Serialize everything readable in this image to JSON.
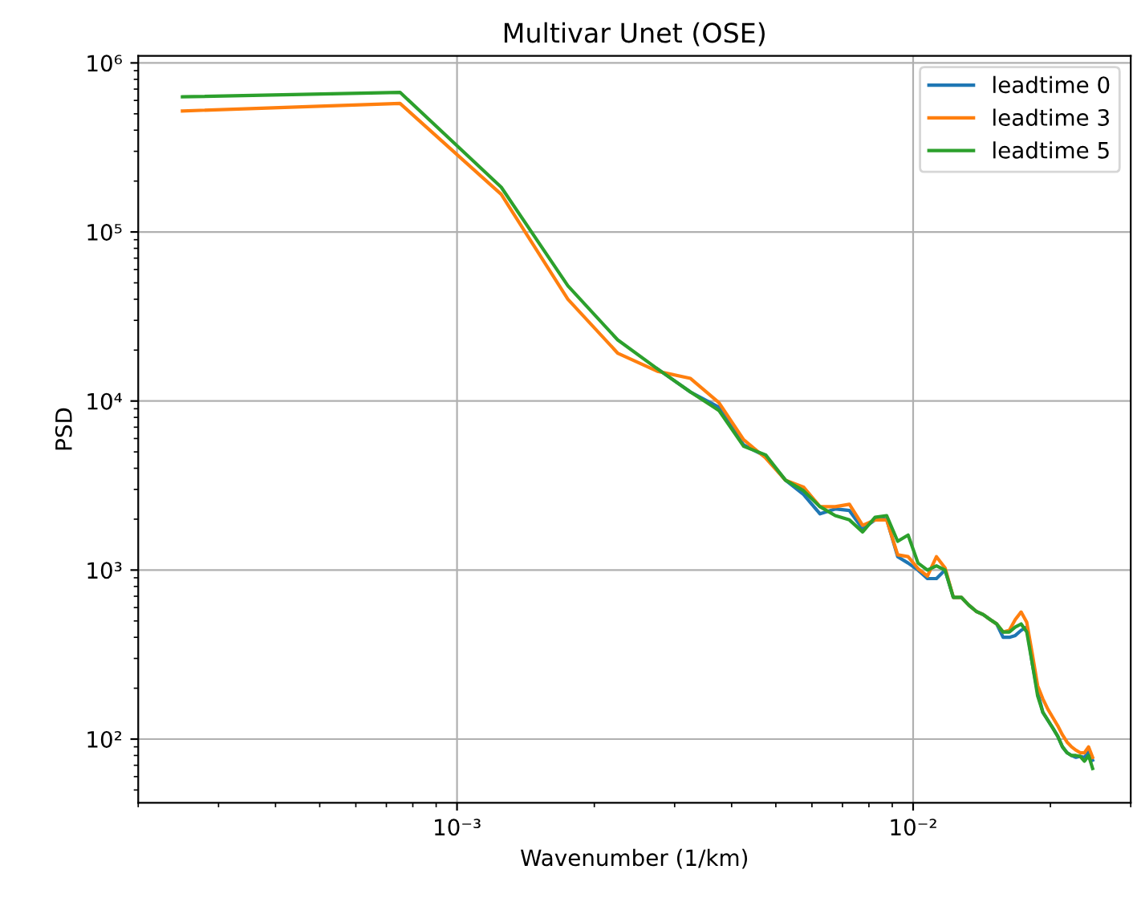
{
  "chart_data": {
    "type": "line",
    "title": "Multivar Unet (OSE)",
    "xlabel": "Wavenumber (1/km)",
    "ylabel": "PSD",
    "log": "xy",
    "grid": true,
    "legend": "top right",
    "x": [
      0.00025,
      0.00075,
      0.00125,
      0.00175,
      0.00225,
      0.00275,
      0.00325,
      0.00375,
      0.00425,
      0.00475,
      0.00525,
      0.00575,
      0.00625,
      0.00675,
      0.00725,
      0.00775,
      0.00825,
      0.00875,
      0.00925,
      0.00975,
      0.01025,
      0.01075,
      0.01125,
      0.01175,
      0.01225,
      0.01275,
      0.01325,
      0.01375,
      0.01425,
      0.01475,
      0.01525,
      0.01575,
      0.01625,
      0.01675,
      0.01725,
      0.01775,
      0.01825,
      0.01875,
      0.01925,
      0.01975,
      0.02025,
      0.02075,
      0.02125,
      0.02175,
      0.02225,
      0.02275,
      0.02325,
      0.02375,
      0.02425,
      0.02475
    ],
    "xlim": [
      0.0002,
      0.03
    ],
    "ylim": [
      42,
      1100000
    ],
    "xticks": [
      {
        "value": 0.001,
        "label": "10⁻³"
      },
      {
        "value": 0.01,
        "label": "10⁻²"
      }
    ],
    "yticks": [
      {
        "value": 100,
        "label": "10²"
      },
      {
        "value": 1000,
        "label": "10³"
      },
      {
        "value": 10000,
        "label": "10⁴"
      },
      {
        "value": 100000,
        "label": "10⁵"
      },
      {
        "value": 1000000,
        "label": "10⁶"
      }
    ],
    "series": [
      {
        "name": "leadtime 0",
        "color": "#1f77b4",
        "values": [
          null,
          null,
          null,
          null,
          null,
          15500,
          11300,
          9200,
          5500,
          4700,
          3400,
          2800,
          2150,
          2300,
          2250,
          1750,
          1980,
          2000,
          1200,
          1100,
          1000,
          890,
          890,
          1000,
          690,
          690,
          620,
          570,
          545,
          510,
          480,
          400,
          400,
          410,
          440,
          460,
          280,
          190,
          144,
          129,
          116,
          104,
          90,
          83,
          80,
          78,
          79,
          78,
          84,
          75
        ]
      },
      {
        "name": "leadtime 3",
        "color": "#ff7f0e",
        "values": [
          520000,
          576000,
          167000,
          40000,
          19200,
          15000,
          13600,
          9800,
          5900,
          4600,
          3400,
          3100,
          2370,
          2370,
          2450,
          1840,
          1980,
          1980,
          1230,
          1200,
          1020,
          920,
          1200,
          1030,
          690,
          690,
          620,
          570,
          545,
          510,
          480,
          430,
          440,
          510,
          565,
          490,
          320,
          207,
          173,
          150,
          134,
          120,
          106,
          96,
          90,
          86,
          83,
          83,
          90,
          78
        ]
      },
      {
        "name": "leadtime 5",
        "color": "#2ca02c",
        "values": [
          630000,
          670000,
          184000,
          48000,
          23000,
          15500,
          11300,
          8800,
          5400,
          4800,
          3400,
          2950,
          2370,
          2100,
          1980,
          1680,
          2050,
          2100,
          1480,
          1610,
          1100,
          1000,
          1060,
          1000,
          690,
          690,
          620,
          570,
          545,
          510,
          480,
          430,
          430,
          460,
          480,
          430,
          280,
          180,
          144,
          129,
          116,
          104,
          90,
          83,
          80,
          80,
          79,
          74,
          80,
          67
        ]
      }
    ]
  }
}
